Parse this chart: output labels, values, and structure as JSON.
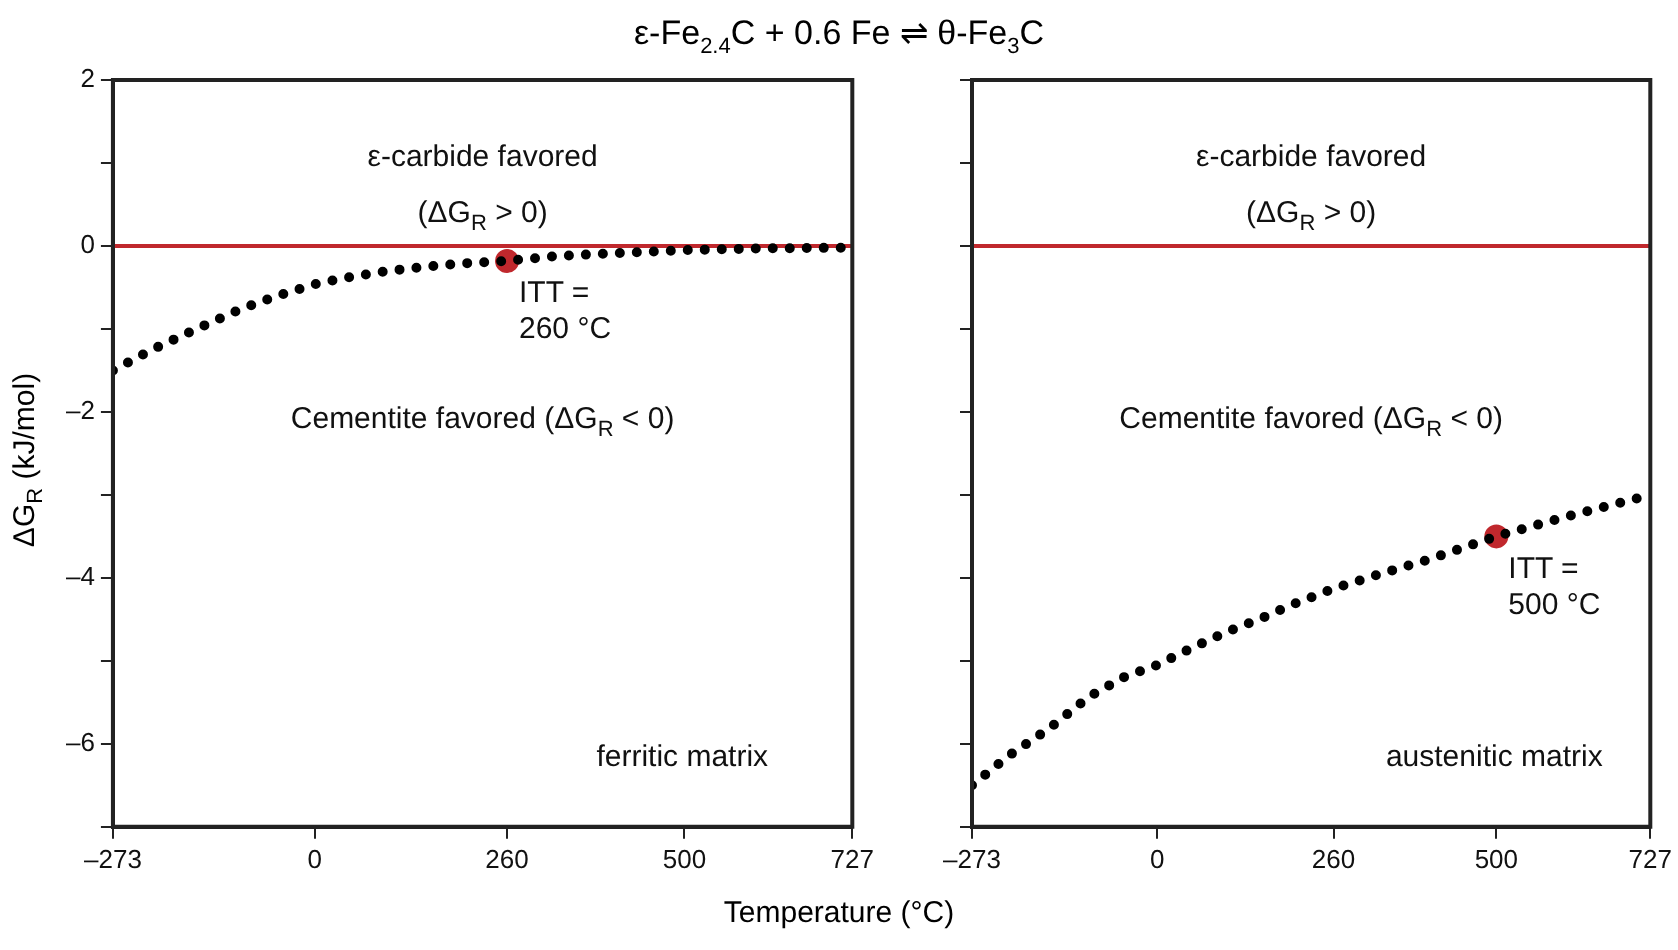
{
  "chart_data": [
    {
      "type": "line",
      "title": "ε-Fe$_{2.4}$C  + 0.6 Fe ⇌ θ-Fe$_{3}$C",
      "xlabel": "Temperature (°C)",
      "ylabel": "ΔG$_{R}$ (kJ/mol)",
      "x": [
        -273,
        -220,
        -160,
        -100,
        -50,
        0,
        50,
        100,
        150,
        200,
        260,
        330,
        400,
        500,
        600,
        727
      ],
      "series": [
        {
          "color": "#000000",
          "values": [
            -1.5,
            -1.25,
            -1.0,
            -0.76,
            -0.6,
            -0.46,
            -0.37,
            -0.3,
            -0.25,
            -0.21,
            -0.18,
            -0.12,
            -0.09,
            -0.05,
            -0.03,
            -0.02
          ],
          "line_style": "dotted",
          "marker": "none"
        },
        {
          "type": "scatter",
          "x": [
            260
          ],
          "color": "#c0282d",
          "values": [
            -0.18
          ],
          "marker": "circle"
        }
      ],
      "xlim": [
        -273,
        727
      ],
      "xticks": [
        {
          "value": -273,
          "label": "–273"
        },
        0,
        260,
        500,
        727
      ],
      "ylim": [
        -7,
        2
      ],
      "yticks": [
        {
          "value": -7,
          "label": null
        },
        {
          "value": -6,
          "label": "–6"
        },
        {
          "value": -5,
          "label": null
        },
        {
          "value": -4,
          "label": "–4"
        },
        {
          "value": -3,
          "label": null
        },
        {
          "value": -2,
          "label": "–2"
        },
        {
          "value": -1,
          "label": null
        },
        0,
        {
          "value": 1,
          "label": null
        },
        2
      ],
      "ref_lines": [
        {
          "axis": "y",
          "value": 0,
          "color": "#c0282d"
        }
      ],
      "annotations": [
        "ε-carbide favored",
        "(ΔG$_{R}$ > 0)",
        "Cementite favored (ΔG$_{R}$ < 0)",
        {
          "text": "ITT = 260 °C",
          "x": 260,
          "y": -0.18
        },
        "ferritic matrix"
      ]
    },
    {
      "type": "line",
      "x": [
        -273,
        -220,
        -160,
        -100,
        -50,
        0,
        50,
        100,
        150,
        200,
        260,
        330,
        400,
        500,
        600,
        727
      ],
      "series": [
        {
          "color": "#000000",
          "values": [
            -6.5,
            -6.15,
            -5.82,
            -5.43,
            -5.2,
            -5.05,
            -4.85,
            -4.66,
            -4.5,
            -4.32,
            -4.13,
            -3.95,
            -3.78,
            -3.5,
            -3.27,
            -3.0
          ],
          "line_style": "dotted",
          "marker": "none"
        },
        {
          "type": "scatter",
          "x": [
            500
          ],
          "color": "#c0282d",
          "values": [
            -3.5
          ],
          "marker": "circle"
        }
      ],
      "xlim": [
        -273,
        727
      ],
      "xticks": [
        {
          "value": -273,
          "label": "–273"
        },
        0,
        260,
        500,
        727
      ],
      "ylim": [
        -7,
        2
      ],
      "yticks": [
        -7,
        -6,
        -5,
        -4,
        -3,
        -2,
        -1,
        0,
        1,
        2
      ],
      "tick_labels": "x",
      "ref_lines": [
        {
          "axis": "y",
          "value": 0,
          "color": "#c0282d"
        }
      ],
      "annotations": [
        "ε-carbide favored",
        "(ΔG$_{R}$ > 0)",
        "Cementite favored (ΔG$_{R}$ < 0)",
        {
          "text": "ITT = 500 °C",
          "x": 500,
          "y": -3.5
        },
        "austenitic matrix"
      ]
    }
  ]
}
